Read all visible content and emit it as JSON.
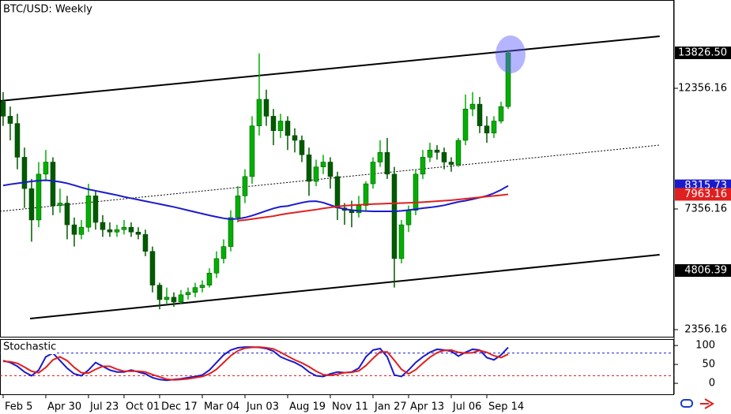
{
  "chart_data": [
    {
      "type": "candlestick",
      "title": "BTC/USD: Weekly",
      "categories": [
        "Feb 5",
        null,
        null,
        null,
        null,
        null,
        "Apr 30",
        null,
        null,
        null,
        null,
        null,
        "Jul 23",
        null,
        null,
        null,
        null,
        "Oct 01",
        null,
        null,
        null,
        null,
        "Dec 17",
        null,
        null,
        null,
        null,
        null,
        "Mar 04",
        null,
        null,
        null,
        null,
        null,
        "Jun 03",
        null,
        null,
        null,
        null,
        null,
        "Aug 19",
        null,
        null,
        null,
        null,
        null,
        "Nov 11",
        null,
        null,
        null,
        null,
        null,
        "Jan 27",
        null,
        null,
        null,
        null,
        "Apr 13",
        null,
        null,
        null,
        null,
        null,
        "Jul 06",
        null,
        null,
        null,
        null,
        "Sep 14",
        null,
        null,
        null
      ],
      "open": [
        11800,
        11200,
        10900,
        9500,
        8200,
        6900,
        8800,
        9300,
        7500,
        7600,
        6700,
        6300,
        6600,
        7900,
        6800,
        6500,
        6400,
        6500,
        6600,
        6400,
        6300,
        5600,
        4200,
        3600,
        3700,
        3500,
        3800,
        3900,
        4100,
        4200,
        4700,
        5300,
        5800,
        7000,
        7900,
        8700,
        10800,
        11900,
        11200,
        10600,
        11000,
        10400,
        10200,
        9600,
        8500,
        9100,
        9300,
        8700,
        7400,
        7300,
        7200,
        7500,
        8400,
        9300,
        9700,
        8800,
        5300,
        6700,
        7300,
        8800,
        9500,
        9800,
        9700,
        9300,
        9200,
        10200,
        11500,
        11700,
        10800,
        10500,
        11000,
        11600
      ],
      "high": [
        12200,
        11600,
        11300,
        9900,
        8600,
        9300,
        9800,
        9500,
        8200,
        7900,
        7000,
        6900,
        8400,
        8100,
        7100,
        6800,
        6700,
        6900,
        6800,
        6600,
        6500,
        5800,
        4300,
        4100,
        3900,
        4000,
        4100,
        4300,
        4400,
        4900,
        5600,
        6100,
        7300,
        8300,
        9000,
        11200,
        13800,
        12300,
        11500,
        11300,
        11200,
        10700,
        10400,
        9900,
        9400,
        9600,
        9500,
        8900,
        7600,
        7700,
        7900,
        8500,
        9500,
        10200,
        10300,
        9100,
        6900,
        7500,
        9000,
        9800,
        10100,
        10000,
        9900,
        9500,
        10300,
        12100,
        12200,
        12000,
        11200,
        11200,
        11800,
        13950
      ],
      "low": [
        10800,
        10200,
        9000,
        7400,
        6000,
        6600,
        8500,
        7100,
        7200,
        6100,
        5800,
        6100,
        6400,
        6500,
        6200,
        6200,
        6200,
        6300,
        6200,
        6100,
        5400,
        3900,
        3200,
        3400,
        3300,
        3400,
        3600,
        3700,
        3900,
        4100,
        4500,
        5100,
        5600,
        6800,
        7600,
        8400,
        10400,
        10800,
        10000,
        10300,
        9800,
        9700,
        9300,
        7900,
        8300,
        8800,
        8200,
        6900,
        6700,
        6600,
        7000,
        7300,
        8200,
        9100,
        8600,
        4100,
        5100,
        6400,
        7100,
        8600,
        9300,
        9400,
        9000,
        8900,
        9100,
        10000,
        11200,
        10500,
        10100,
        10300,
        10900,
        11500
      ],
      "close": [
        11200,
        10900,
        9500,
        8200,
        6900,
        8800,
        9300,
        7500,
        7600,
        6700,
        6300,
        6600,
        7900,
        6800,
        6500,
        6400,
        6500,
        6600,
        6400,
        6300,
        5600,
        4200,
        3600,
        3700,
        3500,
        3800,
        3900,
        4100,
        4200,
        4700,
        5300,
        5800,
        7000,
        7900,
        8700,
        10800,
        11900,
        11200,
        10600,
        11000,
        10400,
        10200,
        9600,
        8500,
        9100,
        9300,
        8700,
        7400,
        7300,
        7200,
        7500,
        8400,
        9300,
        9700,
        8800,
        5300,
        6700,
        7300,
        8800,
        9500,
        9800,
        9700,
        9300,
        9200,
        10200,
        11500,
        11700,
        10800,
        10500,
        11000,
        11600,
        13826.5
      ],
      "up_color": "#00b000",
      "down_color": "#005a00",
      "series": [
        {
          "color": "#1a1acc",
          "values": [
            8330,
            8380,
            8420,
            8460,
            8500,
            8530,
            8550,
            8520,
            8480,
            8420,
            8340,
            8250,
            8170,
            8110,
            8050,
            7990,
            7930,
            7860,
            7800,
            7740,
            7680,
            7620,
            7560,
            7500,
            7440,
            7370,
            7300,
            7230,
            7160,
            7090,
            7030,
            6970,
            6930,
            6950,
            7000,
            7080,
            7180,
            7280,
            7380,
            7450,
            7480,
            7550,
            7620,
            7670,
            7680,
            7620,
            7520,
            7420,
            7350,
            7310,
            7280,
            7270,
            7260,
            7260,
            7260,
            7260,
            7280,
            7310,
            7350,
            7390,
            7420,
            7460,
            7510,
            7580,
            7650,
            7700,
            7760,
            7830,
            7900,
            8010,
            8150,
            8315.73
          ]
        },
        {
          "color": "#e02020",
          "values": [
            null,
            null,
            null,
            null,
            null,
            null,
            null,
            null,
            null,
            null,
            null,
            null,
            null,
            null,
            null,
            null,
            null,
            null,
            null,
            null,
            null,
            null,
            null,
            null,
            null,
            null,
            null,
            null,
            null,
            null,
            null,
            null,
            null,
            6870,
            6900,
            6940,
            6980,
            7020,
            7060,
            7120,
            7170,
            7210,
            7250,
            7290,
            7330,
            7380,
            7420,
            7460,
            7490,
            7510,
            7530,
            7545,
            7560,
            7570,
            7580,
            7590,
            7600,
            7610,
            7625,
            7640,
            7660,
            7680,
            7700,
            7720,
            7750,
            7780,
            7810,
            7840,
            7870,
            7900,
            7930,
            7963.16
          ]
        }
      ],
      "trendlines": [
        {
          "x": [
            -0.44,
            92.3
          ],
          "y": [
            11833,
            14513
          ],
          "style": "solid"
        },
        {
          "x": [
            -0.44,
            92.3
          ],
          "y": [
            7258,
            10003
          ],
          "style": "dotted"
        },
        {
          "x": [
            3.78,
            92.3
          ],
          "y": [
            2814,
            5461
          ],
          "style": "solid"
        }
      ],
      "price_labels": [
        {
          "value": 13826.5,
          "label": "13826.50",
          "color": "#000000"
        },
        {
          "value": 8315.73,
          "label": "8315.73",
          "color": "#1a1acc"
        },
        {
          "value": 7963.16,
          "label": "7963.16",
          "color": "#e02020"
        },
        {
          "value": 4806.39,
          "label": "4806.39",
          "color": "#000000"
        }
      ],
      "xlim": [
        -0.44,
        94.33
      ],
      "ylim": [
        2030,
        16016
      ],
      "yticks": [
        2356.16,
        7356.16,
        12356.16
      ]
    },
    {
      "type": "line",
      "title": "Stochastic",
      "series": [
        {
          "color": "#1a1acc",
          "values": [
            60,
            55,
            45,
            30,
            20,
            35,
            70,
            80,
            60,
            40,
            25,
            20,
            35,
            55,
            45,
            35,
            30,
            30,
            35,
            30,
            25,
            15,
            10,
            8,
            10,
            12,
            15,
            18,
            22,
            35,
            55,
            75,
            88,
            94,
            96,
            96,
            95,
            92,
            85,
            70,
            62,
            55,
            45,
            30,
            20,
            18,
            25,
            30,
            28,
            30,
            40,
            70,
            88,
            92,
            70,
            22,
            18,
            35,
            55,
            70,
            82,
            90,
            88,
            85,
            72,
            82,
            90,
            88,
            68,
            62,
            75,
            95
          ]
        },
        {
          "color": "#e02020",
          "values": [
            58,
            57,
            53,
            43,
            32,
            28,
            42,
            62,
            70,
            60,
            42,
            28,
            27,
            37,
            45,
            45,
            37,
            32,
            32,
            32,
            30,
            23,
            17,
            11,
            9,
            10,
            12,
            15,
            18,
            25,
            37,
            55,
            73,
            86,
            93,
            95,
            96,
            94,
            91,
            82,
            72,
            62,
            54,
            44,
            32,
            23,
            21,
            24,
            28,
            29,
            33,
            47,
            66,
            83,
            83,
            61,
            37,
            25,
            36,
            53,
            69,
            81,
            87,
            88,
            82,
            80,
            81,
            87,
            82,
            73,
            68,
            77
          ]
        }
      ],
      "levels": [
        {
          "value": 80,
          "color": "#1a1acc"
        },
        {
          "value": 20,
          "color": "#e02020"
        }
      ],
      "ylim": [
        -29,
        117
      ],
      "yticks": [
        0,
        50,
        100
      ]
    }
  ]
}
